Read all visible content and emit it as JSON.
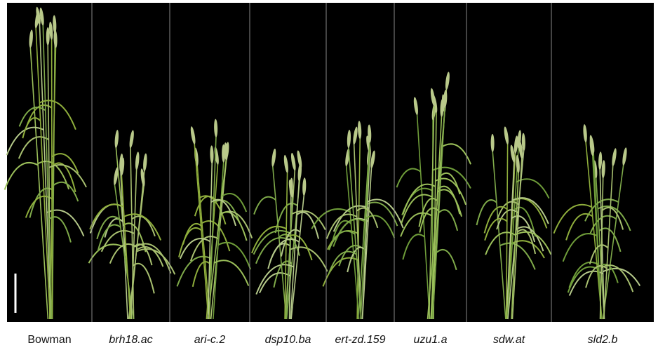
{
  "panels": [
    {
      "label": "Bowman"
    },
    {
      "label": "brh18.ac"
    },
    {
      "label": "ari-c.2"
    },
    {
      "label": "dsp10.ba"
    },
    {
      "label": "ert-zd.159"
    },
    {
      "label": "uzu1.a"
    },
    {
      "label": "sdw.at"
    },
    {
      "label": "sld2.b"
    }
  ]
}
